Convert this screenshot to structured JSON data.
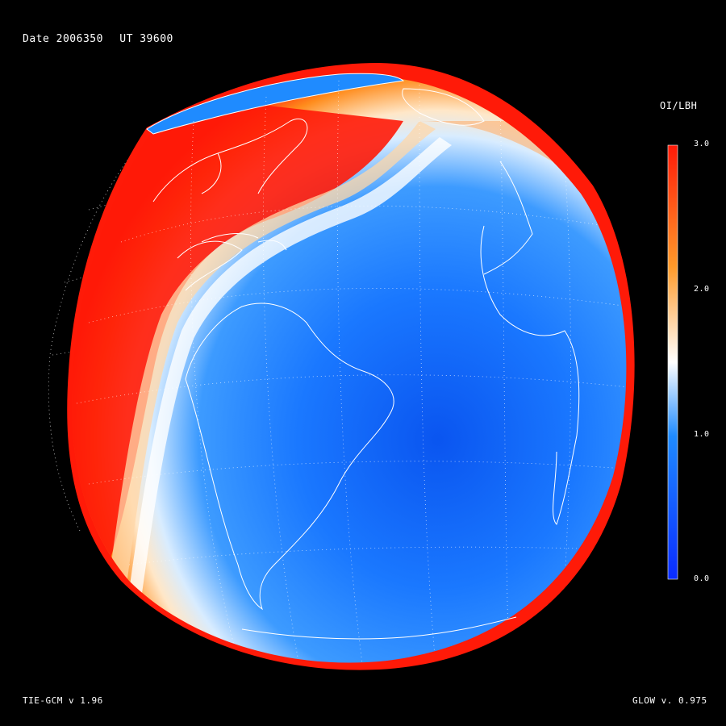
{
  "header": {
    "date_label": "Date 2006350",
    "ut_label": "UT 39600"
  },
  "colorbar": {
    "title": "OI/LBH",
    "ticks": [
      "3.0",
      "2.0",
      "1.0",
      "0.0"
    ],
    "range": [
      0.0,
      3.0
    ],
    "colors": [
      "#0a2bff",
      "#1f8bff",
      "#ffffff",
      "#ff9a2a",
      "#ff1a08"
    ]
  },
  "footer": {
    "model_label": "TIE-GCM v 1.96",
    "glow_label": "GLOW v. 0.975"
  },
  "colors": {
    "background": "#000000",
    "ocean_blue": "#1a6bff",
    "limb_red": "#ff1a08",
    "coastline": "#ffffff"
  }
}
